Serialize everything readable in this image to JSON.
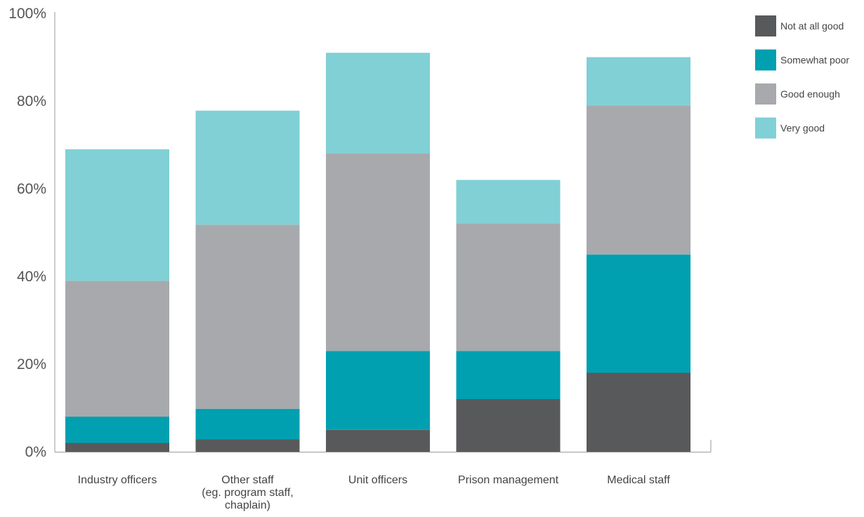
{
  "chart_data": {
    "type": "bar",
    "stacked": true,
    "categories": [
      [
        "Industry officers"
      ],
      [
        "Other staff",
        "(eg. program staff,",
        "chaplain)"
      ],
      [
        "Unit officers"
      ],
      [
        "Prison management"
      ],
      [
        "Medical staff"
      ]
    ],
    "series": [
      {
        "name": "Not at all good",
        "color": "#58595b",
        "values": [
          2,
          2.8,
          5,
          12,
          18
        ]
      },
      {
        "name": "Somewhat poor",
        "color": "#00a0b0",
        "values": [
          6,
          7,
          18,
          11,
          27
        ]
      },
      {
        "name": "Good enough",
        "color": "#a7a9ac",
        "values": [
          31,
          42,
          45,
          29,
          34
        ]
      },
      {
        "name": "Very good",
        "color": "#80d0d6",
        "values": [
          30,
          26,
          23,
          10,
          11
        ]
      }
    ],
    "yticks": [
      "0%",
      "20%",
      "40%",
      "60%",
      "80%",
      "100%"
    ],
    "ylim": [
      0,
      100
    ],
    "legend_position": "top-right",
    "grid": false,
    "title": "",
    "xlabel": "",
    "ylabel": ""
  }
}
